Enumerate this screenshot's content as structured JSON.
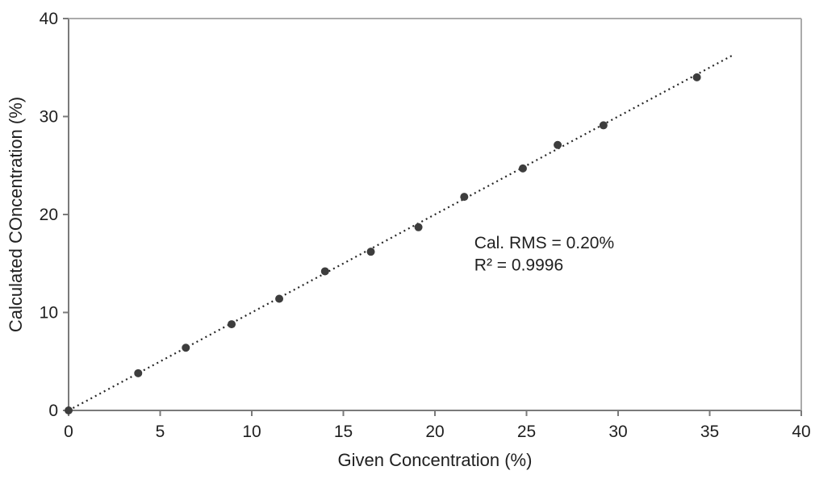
{
  "chart_data": {
    "type": "scatter",
    "title": "",
    "xlabel": "Given Concentration (%)",
    "ylabel": "Calculated COncentration (%)",
    "xlim": [
      0,
      40
    ],
    "ylim": [
      0,
      40
    ],
    "x_ticks": [
      0,
      5,
      10,
      15,
      20,
      25,
      30,
      35,
      40
    ],
    "y_ticks": [
      0,
      10,
      20,
      30,
      40
    ],
    "grid": false,
    "legend": false,
    "series": [
      {
        "name": "calibration-points",
        "points": [
          [
            0,
            0
          ],
          [
            3.8,
            3.8
          ],
          [
            6.4,
            6.4
          ],
          [
            8.9,
            8.8
          ],
          [
            11.5,
            11.4
          ],
          [
            14.0,
            14.2
          ],
          [
            16.5,
            16.2
          ],
          [
            19.1,
            18.7
          ],
          [
            21.6,
            21.8
          ],
          [
            24.8,
            24.7
          ],
          [
            26.7,
            27.1
          ],
          [
            29.2,
            29.1
          ],
          [
            34.3,
            34.0
          ]
        ]
      }
    ],
    "trendline": {
      "x1": 0,
      "y1": 0,
      "x2": 36.3,
      "y2": 36.3,
      "style": "dotted"
    },
    "annotations": [
      {
        "text": "Cal. RMS = 0.20%",
        "x": 22.15,
        "y": 16.55
      },
      {
        "text": "R² = 0.9996",
        "x": 22.15,
        "y": 14.3
      }
    ],
    "colors": {
      "point": "#3d3d3d",
      "trendline": "#262626",
      "axis": "#7a7a7a",
      "border": "#ababab",
      "text": "#1f1f1f"
    }
  }
}
